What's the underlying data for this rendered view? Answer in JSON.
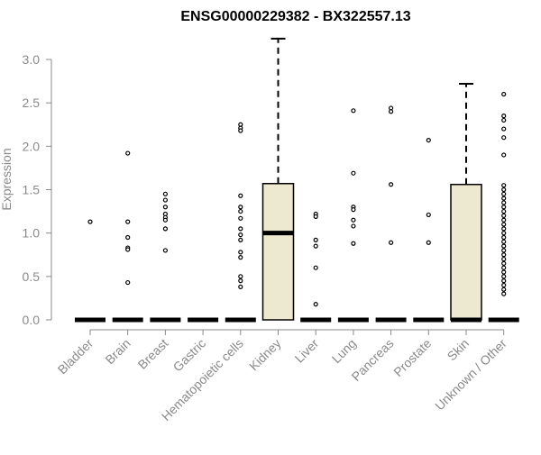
{
  "chart_data": {
    "type": "box",
    "title": "ENSG00000229382 - BX322557.13",
    "xlabel": "",
    "ylabel": "Expression",
    "ylim": [
      0,
      3.0
    ],
    "yticks": [
      "0.0",
      "0.5",
      "1.0",
      "1.5",
      "2.0",
      "2.5",
      "3.0"
    ],
    "box_fill": "#ede8d0",
    "categories": [
      "Bladder",
      "Brain",
      "Breast",
      "Gastric",
      "Hematopoietic cells",
      "Kidney",
      "Liver",
      "Lung",
      "Pancreas",
      "Prostate",
      "Skin",
      "Unknown / Other"
    ],
    "boxes": [
      {
        "category": "Bladder",
        "q1": 0,
        "median": 0,
        "q3": 0,
        "whisker_low": 0,
        "whisker_high": 0,
        "outliers": [
          1.13
        ]
      },
      {
        "category": "Brain",
        "q1": 0,
        "median": 0,
        "q3": 0,
        "whisker_low": 0,
        "whisker_high": 0,
        "outliers": [
          1.92,
          1.13,
          0.95,
          0.83,
          0.81,
          0.43
        ]
      },
      {
        "category": "Breast",
        "q1": 0,
        "median": 0,
        "q3": 0,
        "whisker_low": 0,
        "whisker_high": 0,
        "outliers": [
          1.45,
          1.38,
          1.3,
          1.22,
          1.18,
          1.15,
          1.05,
          0.8
        ]
      },
      {
        "category": "Gastric",
        "q1": 0,
        "median": 0,
        "q3": 0,
        "whisker_low": 0,
        "whisker_high": 0,
        "outliers": []
      },
      {
        "category": "Hematopoietic cells",
        "q1": 0,
        "median": 0,
        "q3": 0,
        "whisker_low": 0,
        "whisker_high": 0,
        "outliers": [
          2.25,
          2.21,
          2.18,
          1.43,
          1.3,
          1.25,
          1.17,
          1.05,
          0.98,
          0.92,
          0.78,
          0.72,
          0.5,
          0.45,
          0.38
        ]
      },
      {
        "category": "Kidney",
        "q1": 0,
        "median": 1.0,
        "q3": 1.57,
        "whisker_low": 0,
        "whisker_high": 3.24,
        "outliers": []
      },
      {
        "category": "Liver",
        "q1": 0,
        "median": 0,
        "q3": 0,
        "whisker_low": 0,
        "whisker_high": 0,
        "outliers": [
          1.22,
          1.19,
          0.92,
          0.85,
          0.6,
          0.18
        ]
      },
      {
        "category": "Lung",
        "q1": 0,
        "median": 0,
        "q3": 0,
        "whisker_low": 0,
        "whisker_high": 0,
        "outliers": [
          2.41,
          1.69,
          1.3,
          1.27,
          1.15,
          1.08,
          0.88
        ]
      },
      {
        "category": "Pancreas",
        "q1": 0,
        "median": 0,
        "q3": 0,
        "whisker_low": 0,
        "whisker_high": 0,
        "outliers": [
          2.44,
          2.4,
          1.56,
          0.89
        ]
      },
      {
        "category": "Prostate",
        "q1": 0,
        "median": 0,
        "q3": 0,
        "whisker_low": 0,
        "whisker_high": 0,
        "outliers": [
          2.07,
          1.21,
          0.89
        ]
      },
      {
        "category": "Skin",
        "q1": 0,
        "median": 0,
        "q3": 1.56,
        "whisker_low": 0,
        "whisker_high": 2.72,
        "outliers": []
      },
      {
        "category": "Unknown / Other",
        "q1": 0,
        "median": 0,
        "q3": 0,
        "whisker_low": 0,
        "whisker_high": 0,
        "outliers": [
          2.6,
          2.35,
          2.3,
          2.2,
          2.1,
          1.9,
          1.55,
          1.5,
          1.45,
          1.4,
          1.35,
          1.3,
          1.25,
          1.2,
          1.15,
          1.1,
          1.05,
          1.0,
          0.95,
          0.9,
          0.85,
          0.8,
          0.75,
          0.7,
          0.65,
          0.6,
          0.55,
          0.5,
          0.45,
          0.4,
          0.35,
          0.3
        ]
      }
    ]
  }
}
